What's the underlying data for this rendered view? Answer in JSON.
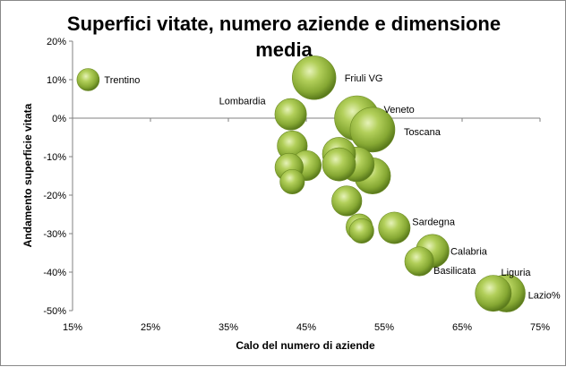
{
  "chart_data": {
    "type": "bubble",
    "title_lines": [
      "Superfici vitate, numero aziende e dimensione",
      "media"
    ],
    "xlabel": "Calo del numero di aziende",
    "ylabel": "Andamento superficie vitata",
    "xlim": [
      0.15,
      0.75
    ],
    "ylim": [
      -0.5,
      0.2
    ],
    "x_ticks": [
      "15%",
      "25%",
      "35%",
      "45%",
      "55%",
      "65%",
      "75%"
    ],
    "y_ticks": [
      "20%",
      "10%",
      "0%",
      "-10%",
      "-20%",
      "-30%",
      "-40%",
      "-50%"
    ],
    "grid": false,
    "legend": "none",
    "bubble_color": "#8fb23a",
    "points": [
      {
        "name": "Trentino",
        "x": 0.17,
        "y": 0.1,
        "size": 0.25
      },
      {
        "name": "Friuli VG",
        "x": 0.46,
        "y": 0.105,
        "size": 0.95
      },
      {
        "name": "Lombardia",
        "x": 0.43,
        "y": 0.01,
        "size": 0.5
      },
      {
        "name": "Veneto",
        "x": 0.515,
        "y": 0.0,
        "size": 1.0
      },
      {
        "name": "Toscana",
        "x": 0.535,
        "y": -0.03,
        "size": 1.0
      },
      {
        "name": "",
        "x": 0.432,
        "y": -0.072,
        "size": 0.45
      },
      {
        "name": "",
        "x": 0.428,
        "y": -0.128,
        "size": 0.4
      },
      {
        "name": "",
        "x": 0.45,
        "y": -0.123,
        "size": 0.45
      },
      {
        "name": "",
        "x": 0.432,
        "y": -0.165,
        "size": 0.3
      },
      {
        "name": "",
        "x": 0.492,
        "y": -0.093,
        "size": 0.55
      },
      {
        "name": "",
        "x": 0.492,
        "y": -0.12,
        "size": 0.55
      },
      {
        "name": "",
        "x": 0.515,
        "y": -0.12,
        "size": 0.6
      },
      {
        "name": "",
        "x": 0.535,
        "y": -0.15,
        "size": 0.65
      },
      {
        "name": "",
        "x": 0.502,
        "y": -0.215,
        "size": 0.45
      },
      {
        "name": "",
        "x": 0.518,
        "y": -0.283,
        "size": 0.35
      },
      {
        "name": "",
        "x": 0.521,
        "y": -0.293,
        "size": 0.3
      },
      {
        "name": "Sardegna",
        "x": 0.563,
        "y": -0.285,
        "size": 0.5
      },
      {
        "name": "Calabria",
        "x": 0.612,
        "y": -0.345,
        "size": 0.55
      },
      {
        "name": "Basilicata",
        "x": 0.595,
        "y": -0.372,
        "size": 0.42
      },
      {
        "name": "Liguria",
        "x": 0.69,
        "y": -0.455,
        "size": 0.65
      },
      {
        "name": "Lazio%",
        "x": 0.707,
        "y": -0.455,
        "size": 0.7
      }
    ]
  }
}
